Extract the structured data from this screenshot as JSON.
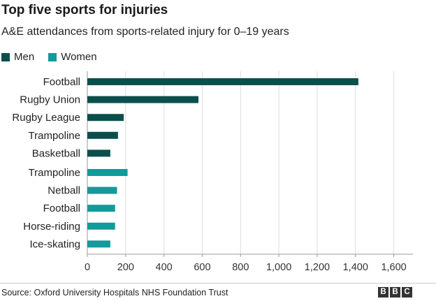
{
  "header": {
    "title": "Top five sports for injuries",
    "subtitle": "A&E attendances from sports-related injury for 0–19 years"
  },
  "legend": {
    "items": [
      {
        "label": "Men",
        "color": "#0b4f4d"
      },
      {
        "label": "Women",
        "color": "#139a9a"
      }
    ]
  },
  "chart_data": {
    "type": "bar",
    "orientation": "horizontal",
    "title": "Top five sports for injuries",
    "subtitle": "A&E attendances from sports-related injury for 0–19 years",
    "xlabel": "",
    "ylabel": "",
    "xlim": [
      0,
      1700
    ],
    "ticks": [
      0,
      200,
      400,
      600,
      800,
      1000,
      1200,
      1400,
      1600
    ],
    "tick_labels": [
      "0",
      "200",
      "400",
      "600",
      "800",
      "1,000",
      "1,200",
      "1,400",
      "1,600"
    ],
    "grid": true,
    "legend_position": "top-left",
    "series": [
      {
        "name": "Men",
        "color": "#0b4f4d",
        "categories": [
          "Football",
          "Rugby Union",
          "Rugby League",
          "Trampoline",
          "Basketball"
        ],
        "values": [
          1415,
          580,
          190,
          160,
          120
        ]
      },
      {
        "name": "Women",
        "color": "#139a9a",
        "categories": [
          "Trampoline",
          "Netball",
          "Football",
          "Horse-riding",
          "Ice-skating"
        ],
        "values": [
          210,
          155,
          145,
          145,
          120
        ]
      }
    ]
  },
  "footer": {
    "source": "Source: Oxford University Hospitals NHS Foundation Trust",
    "logo_letters": [
      "B",
      "B",
      "C"
    ]
  }
}
